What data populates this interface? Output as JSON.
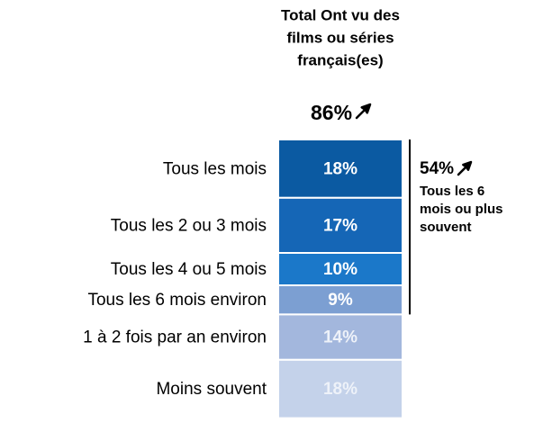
{
  "chart_data": {
    "type": "stacked-bar",
    "title_lines": [
      "Total Ont vu des",
      "films ou séries",
      "français(es)"
    ],
    "total_label": "86%",
    "categories": [
      "Tous les mois",
      "Tous les 2 ou 3 mois",
      "Tous les 4 ou 5 mois",
      "Tous les 6 mois environ",
      "1 à 2 fois par an environ",
      "Moins souvent"
    ],
    "values": [
      18,
      17,
      10,
      9,
      14,
      18
    ],
    "value_labels": [
      "18%",
      "17%",
      "10%",
      "9%",
      "14%",
      "18%"
    ],
    "colors": [
      "#0b5aa2",
      "#1566b6",
      "#1b78c9",
      "#7c9fd2",
      "#a3b7dd",
      "#c4d2ea"
    ],
    "label_colors": [
      "#ffffff",
      "#ffffff",
      "#ffffff",
      "#ffffff",
      "#eef2f9",
      "#eef2f9"
    ],
    "bracket_label": "54%",
    "bracket_text_lines": [
      "Tous les 6",
      "mois ou plus",
      "souvent"
    ]
  }
}
